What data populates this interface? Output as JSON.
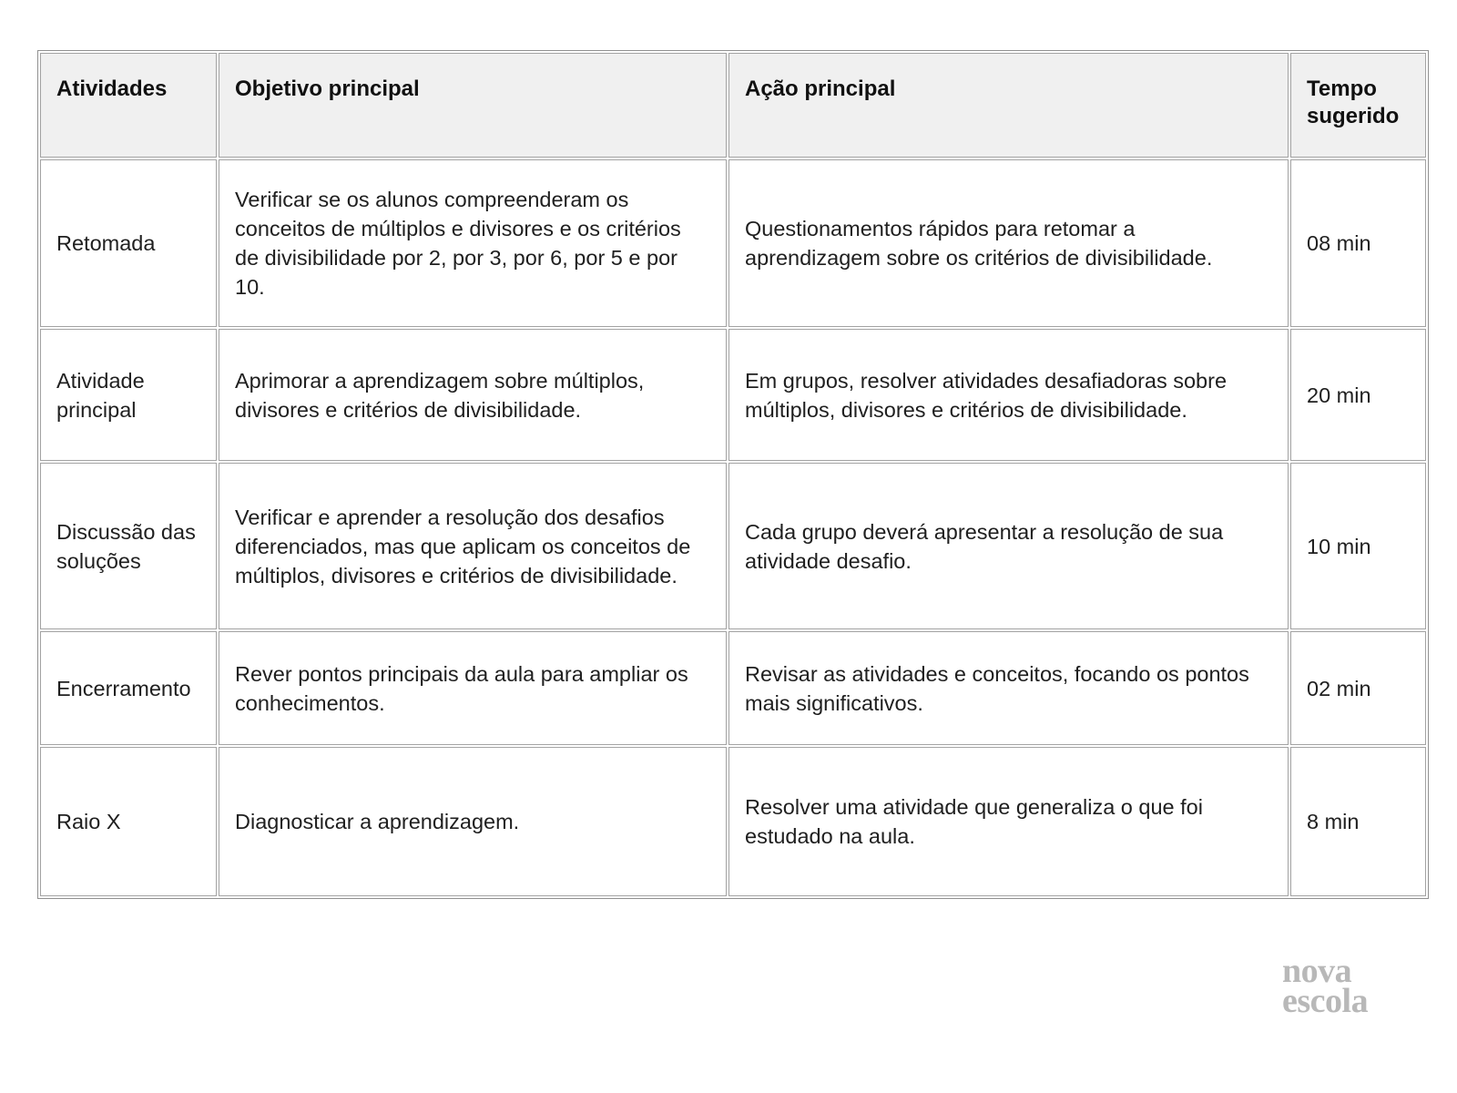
{
  "colors": {
    "header_bg": "#f0f0f0",
    "border": "#a3a3a3",
    "text": "#1f1f1f",
    "logo": "#b8b8b8"
  },
  "table": {
    "headers": [
      "Atividades",
      "Objetivo principal",
      "Ação principal",
      "Tempo sugerido"
    ],
    "rows": [
      {
        "atividade": "Retomada",
        "objetivo": "Verificar se os alunos compreenderam os conceitos de múltiplos e divisores e os critérios de divisibilidade por 2, por 3, por 6, por 5 e por 10.",
        "acao": "Questionamentos rápidos para retomar a aprendizagem sobre os critérios de divisibilidade.",
        "tempo": "08 min"
      },
      {
        "atividade": "Atividade principal",
        "objetivo": "Aprimorar a aprendizagem sobre múltiplos, divisores e critérios de divisibilidade.",
        "acao": "Em grupos, resolver atividades desafiadoras sobre múltiplos, divisores e critérios de divisibilidade.",
        "tempo": "20 min"
      },
      {
        "atividade": "Discussão das soluções",
        "objetivo": "Verificar e aprender a resolução dos desafios diferenciados, mas que aplicam os conceitos de múltiplos, divisores e critérios de divisibilidade.",
        "acao": "Cada grupo deverá apresentar a resolução de sua atividade desafio.",
        "tempo": "10 min"
      },
      {
        "atividade": "Encerramento",
        "objetivo": "Rever pontos principais da aula para ampliar os conhecimentos.",
        "acao": "Revisar as atividades e conceitos, focando os pontos mais significativos.",
        "tempo": "02 min"
      },
      {
        "atividade": "Raio X",
        "objetivo": "Diagnosticar a aprendizagem.",
        "acao": "Resolver uma atividade que generaliza o que foi estudado na aula.",
        "tempo": "8 min"
      }
    ]
  },
  "footer": {
    "logo_line1": "nova",
    "logo_line2": "escola"
  }
}
